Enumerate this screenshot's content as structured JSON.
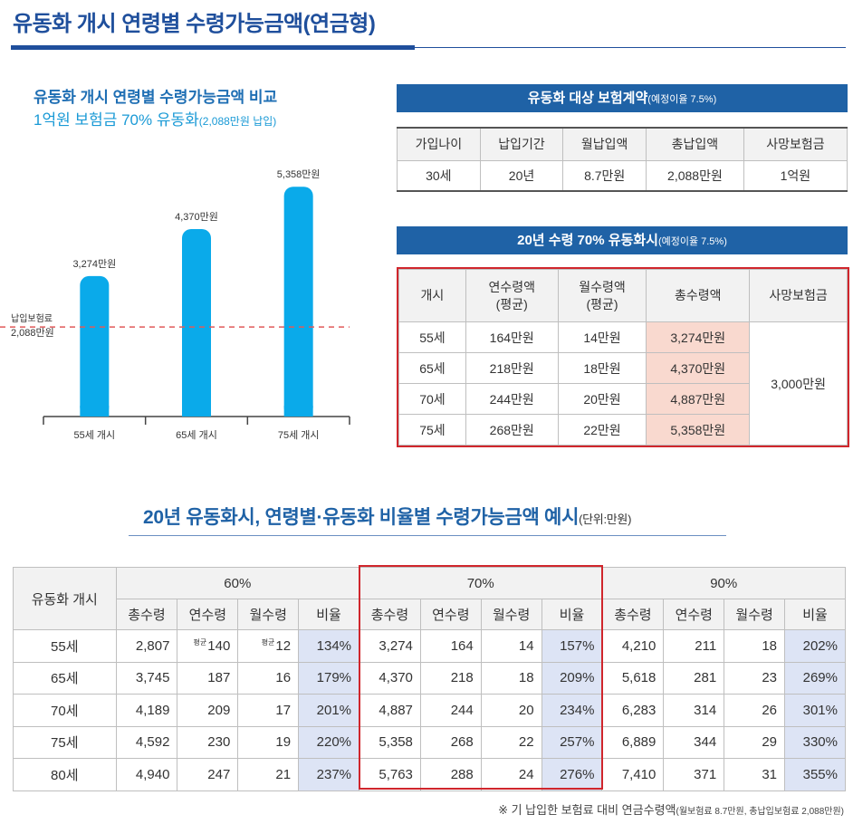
{
  "page": {
    "title": "유동화 개시 연령별 수령가능금액(연금형)"
  },
  "chart": {
    "title": "유동화 개시 연령별 수령가능금액 비교",
    "subtitle_main": "1억원 보험금 70% 유동화",
    "subtitle_note": "(2,088만원 납입)",
    "reference_label_line1": "납입보험료",
    "reference_label_line2": "2,088만원",
    "colors": {
      "bar": "#0aaaea",
      "reference_line": "#e05a5a"
    }
  },
  "chart_data": {
    "type": "bar",
    "title": "유동화 개시 연령별 수령가능금액 비교",
    "categories": [
      "55세 개시",
      "65세 개시",
      "75세 개시"
    ],
    "values": [
      3274,
      4370,
      5358
    ],
    "value_labels": [
      "3,274만원",
      "4,370만원",
      "5,358만원"
    ],
    "reference_value": 2088,
    "ylim": [
      0,
      5700
    ],
    "unit": "만원",
    "xlabel": "",
    "ylabel": ""
  },
  "contract": {
    "header": "유동화 대상 보험계약",
    "header_note": "(예정이율 7.5%)",
    "columns": [
      "가입나이",
      "납입기간",
      "월납입액",
      "총납입액",
      "사망보험금"
    ],
    "values": [
      "30세",
      "20년",
      "8.7만원",
      "2,088만원",
      "1억원"
    ]
  },
  "payout": {
    "header": "20년 수령 70% 유동화시",
    "header_note": "(예정이율 7.5%)",
    "columns": {
      "age": "개시",
      "annual_line1": "연수령액",
      "annual_line2": "(평균)",
      "monthly_line1": "월수령액",
      "monthly_line2": "(평균)",
      "total": "총수령액",
      "death": "사망보험금"
    },
    "rows": [
      {
        "age": "55세",
        "annual": "164만원",
        "monthly": "14만원",
        "total": "3,274만원"
      },
      {
        "age": "65세",
        "annual": "218만원",
        "monthly": "18만원",
        "total": "4,370만원"
      },
      {
        "age": "70세",
        "annual": "244만원",
        "monthly": "20만원",
        "total": "4,887만원"
      },
      {
        "age": "75세",
        "annual": "268만원",
        "monthly": "22만원",
        "total": "5,358만원"
      }
    ],
    "death_benefit": "3,000만원"
  },
  "ratio": {
    "title": "20년 유동화시, 연령별·유동화 비율별 수령가능금액 예시",
    "title_note": "(단위:만원)",
    "row_header": "유동화 개시",
    "groups": [
      "60%",
      "70%",
      "90%"
    ],
    "subcolumns": [
      "총수령",
      "연수령",
      "월수령",
      "비율"
    ],
    "small_marker": "평균",
    "rows": [
      {
        "age": "55세",
        "g60": [
          "2,807",
          "140",
          "12",
          "134%"
        ],
        "g70": [
          "3,274",
          "164",
          "14",
          "157%"
        ],
        "g90": [
          "4,210",
          "211",
          "18",
          "202%"
        ]
      },
      {
        "age": "65세",
        "g60": [
          "3,745",
          "187",
          "16",
          "179%"
        ],
        "g70": [
          "4,370",
          "218",
          "18",
          "209%"
        ],
        "g90": [
          "5,618",
          "281",
          "23",
          "269%"
        ]
      },
      {
        "age": "70세",
        "g60": [
          "4,189",
          "209",
          "17",
          "201%"
        ],
        "g70": [
          "4,887",
          "244",
          "20",
          "234%"
        ],
        "g90": [
          "6,283",
          "314",
          "26",
          "301%"
        ]
      },
      {
        "age": "75세",
        "g60": [
          "4,592",
          "230",
          "19",
          "220%"
        ],
        "g70": [
          "5,358",
          "268",
          "22",
          "257%"
        ],
        "g90": [
          "6,889",
          "344",
          "29",
          "330%"
        ]
      },
      {
        "age": "80세",
        "g60": [
          "4,940",
          "247",
          "21",
          "237%"
        ],
        "g70": [
          "5,763",
          "288",
          "24",
          "276%"
        ],
        "g90": [
          "7,410",
          "371",
          "31",
          "355%"
        ]
      }
    ]
  },
  "footnote": {
    "main": "※ 기 납입한 보험료 대비 연금수령액",
    "note": "(월보험료 8.7만원, 총납입보험료 2,088만원)"
  }
}
